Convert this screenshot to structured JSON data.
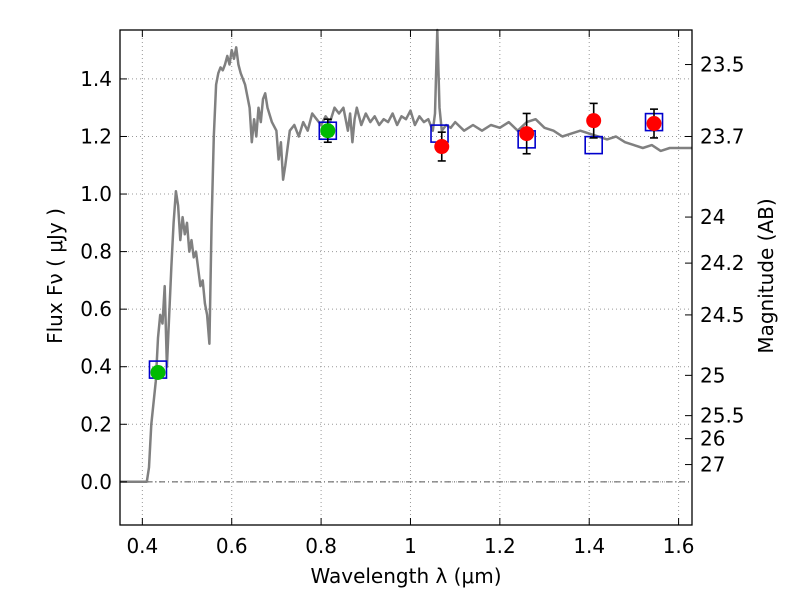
{
  "chart_data": {
    "type": "scatter",
    "xlabel": "Wavelength  λ (μm)",
    "ylabel": "Flux  Fν  ( μJy )",
    "y2label": "Magnitude (AB)",
    "xlim": [
      0.35,
      1.63
    ],
    "ylim": [
      -0.15,
      1.57
    ],
    "grid": true,
    "x_ticks": [
      {
        "value": 0.4,
        "label": "0.4"
      },
      {
        "value": 0.6,
        "label": "0.6"
      },
      {
        "value": 0.8,
        "label": "0.8"
      },
      {
        "value": 1.0,
        "label": "1"
      },
      {
        "value": 1.2,
        "label": "1.2"
      },
      {
        "value": 1.4,
        "label": "1.4"
      },
      {
        "value": 1.6,
        "label": "1.6"
      }
    ],
    "y_ticks": [
      {
        "value": 0.0,
        "label": "0.0"
      },
      {
        "value": 0.2,
        "label": "0.2"
      },
      {
        "value": 0.4,
        "label": "0.4"
      },
      {
        "value": 0.6,
        "label": "0.6"
      },
      {
        "value": 0.8,
        "label": "0.8"
      },
      {
        "value": 1.0,
        "label": "1.0"
      },
      {
        "value": 1.2,
        "label": "1.2"
      },
      {
        "value": 1.4,
        "label": "1.4"
      }
    ],
    "magnitude_ticks": [
      {
        "flux": 1.45,
        "label": "23.5"
      },
      {
        "flux": 1.2,
        "label": "23.7"
      },
      {
        "flux": 0.92,
        "label": "24"
      },
      {
        "flux": 0.76,
        "label": "24.2"
      },
      {
        "flux": 0.58,
        "label": "24.5"
      },
      {
        "flux": 0.37,
        "label": "25"
      },
      {
        "flux": 0.23,
        "label": "25.5"
      },
      {
        "flux": 0.15,
        "label": "26"
      },
      {
        "flux": 0.06,
        "label": "27"
      }
    ],
    "series": [
      {
        "type": "line",
        "color": "#808080",
        "points": [
          [
            0.35,
            0.0
          ],
          [
            0.41,
            0.0
          ],
          [
            0.415,
            0.05
          ],
          [
            0.42,
            0.2
          ],
          [
            0.43,
            0.35
          ],
          [
            0.435,
            0.5
          ],
          [
            0.44,
            0.58
          ],
          [
            0.445,
            0.55
          ],
          [
            0.45,
            0.68
          ],
          [
            0.455,
            0.4
          ],
          [
            0.46,
            0.58
          ],
          [
            0.465,
            0.75
          ],
          [
            0.47,
            0.9
          ],
          [
            0.475,
            1.01
          ],
          [
            0.48,
            0.96
          ],
          [
            0.485,
            0.84
          ],
          [
            0.49,
            0.92
          ],
          [
            0.495,
            0.86
          ],
          [
            0.5,
            0.9
          ],
          [
            0.505,
            0.8
          ],
          [
            0.51,
            0.84
          ],
          [
            0.515,
            0.78
          ],
          [
            0.52,
            0.8
          ],
          [
            0.525,
            0.74
          ],
          [
            0.53,
            0.68
          ],
          [
            0.535,
            0.7
          ],
          [
            0.54,
            0.62
          ],
          [
            0.545,
            0.58
          ],
          [
            0.55,
            0.48
          ],
          [
            0.555,
            0.9
          ],
          [
            0.56,
            1.2
          ],
          [
            0.565,
            1.38
          ],
          [
            0.57,
            1.42
          ],
          [
            0.575,
            1.44
          ],
          [
            0.58,
            1.43
          ],
          [
            0.585,
            1.45
          ],
          [
            0.59,
            1.48
          ],
          [
            0.595,
            1.45
          ],
          [
            0.6,
            1.5
          ],
          [
            0.605,
            1.47
          ],
          [
            0.61,
            1.51
          ],
          [
            0.615,
            1.45
          ],
          [
            0.62,
            1.42
          ],
          [
            0.63,
            1.38
          ],
          [
            0.64,
            1.3
          ],
          [
            0.645,
            1.18
          ],
          [
            0.65,
            1.26
          ],
          [
            0.655,
            1.2
          ],
          [
            0.66,
            1.3
          ],
          [
            0.665,
            1.25
          ],
          [
            0.67,
            1.33
          ],
          [
            0.675,
            1.35
          ],
          [
            0.68,
            1.3
          ],
          [
            0.69,
            1.25
          ],
          [
            0.7,
            1.22
          ],
          [
            0.705,
            1.12
          ],
          [
            0.71,
            1.18
          ],
          [
            0.715,
            1.05
          ],
          [
            0.72,
            1.1
          ],
          [
            0.73,
            1.22
          ],
          [
            0.74,
            1.24
          ],
          [
            0.75,
            1.2
          ],
          [
            0.76,
            1.25
          ],
          [
            0.77,
            1.22
          ],
          [
            0.78,
            1.28
          ],
          [
            0.79,
            1.26
          ],
          [
            0.8,
            1.24
          ],
          [
            0.81,
            1.27
          ],
          [
            0.82,
            1.25
          ],
          [
            0.83,
            1.3
          ],
          [
            0.84,
            1.28
          ],
          [
            0.85,
            1.3
          ],
          [
            0.86,
            1.22
          ],
          [
            0.865,
            1.28
          ],
          [
            0.87,
            1.18
          ],
          [
            0.875,
            1.26
          ],
          [
            0.88,
            1.3
          ],
          [
            0.89,
            1.24
          ],
          [
            0.9,
            1.28
          ],
          [
            0.91,
            1.25
          ],
          [
            0.92,
            1.27
          ],
          [
            0.93,
            1.24
          ],
          [
            0.94,
            1.26
          ],
          [
            0.95,
            1.25
          ],
          [
            0.96,
            1.28
          ],
          [
            0.97,
            1.24
          ],
          [
            0.98,
            1.27
          ],
          [
            0.99,
            1.26
          ],
          [
            1.0,
            1.29
          ],
          [
            1.01,
            1.24
          ],
          [
            1.02,
            1.27
          ],
          [
            1.03,
            1.25
          ],
          [
            1.04,
            1.26
          ],
          [
            1.05,
            1.22
          ],
          [
            1.055,
            1.28
          ],
          [
            1.06,
            1.57
          ],
          [
            1.065,
            1.3
          ],
          [
            1.07,
            1.22
          ],
          [
            1.08,
            1.24
          ],
          [
            1.09,
            1.23
          ],
          [
            1.1,
            1.25
          ],
          [
            1.12,
            1.22
          ],
          [
            1.14,
            1.24
          ],
          [
            1.16,
            1.22
          ],
          [
            1.18,
            1.24
          ],
          [
            1.2,
            1.23
          ],
          [
            1.22,
            1.25
          ],
          [
            1.24,
            1.22
          ],
          [
            1.26,
            1.25
          ],
          [
            1.28,
            1.26
          ],
          [
            1.3,
            1.23
          ],
          [
            1.32,
            1.22
          ],
          [
            1.34,
            1.2
          ],
          [
            1.36,
            1.21
          ],
          [
            1.38,
            1.22
          ],
          [
            1.4,
            1.21
          ],
          [
            1.42,
            1.2
          ],
          [
            1.44,
            1.19
          ],
          [
            1.46,
            1.2
          ],
          [
            1.48,
            1.18
          ],
          [
            1.5,
            1.17
          ],
          [
            1.52,
            1.16
          ],
          [
            1.54,
            1.17
          ],
          [
            1.56,
            1.15
          ],
          [
            1.58,
            1.16
          ],
          [
            1.6,
            1.16
          ],
          [
            1.63,
            1.16
          ]
        ]
      },
      {
        "type": "open-square",
        "color": "#0000cc",
        "points": [
          [
            0.435,
            0.39
          ],
          [
            0.815,
            1.22
          ],
          [
            1.065,
            1.21
          ],
          [
            1.26,
            1.19
          ],
          [
            1.41,
            1.17
          ],
          [
            1.545,
            1.25
          ]
        ]
      },
      {
        "type": "filled-circle",
        "color": "#00bb00",
        "points": [
          {
            "x": 0.435,
            "y": 0.38,
            "err": 0.02
          },
          {
            "x": 0.815,
            "y": 1.22,
            "err": 0.04
          }
        ]
      },
      {
        "type": "filled-circle",
        "color": "#ff0000",
        "points": [
          {
            "x": 1.07,
            "y": 1.165,
            "err": 0.05
          },
          {
            "x": 1.26,
            "y": 1.21,
            "err": 0.07
          },
          {
            "x": 1.41,
            "y": 1.255,
            "err": 0.06
          },
          {
            "x": 1.545,
            "y": 1.245,
            "err": 0.05
          }
        ]
      }
    ]
  }
}
